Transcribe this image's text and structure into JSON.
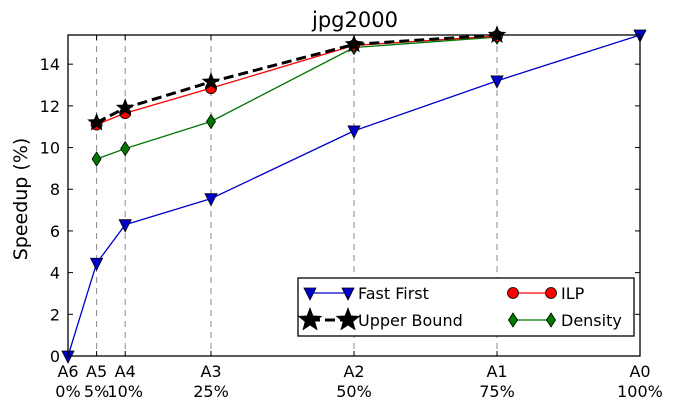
{
  "chart_data": {
    "type": "line",
    "title": "jpg2000",
    "xlabel": "",
    "ylabel": "Speedup (%)",
    "ylim": [
      0,
      15.4
    ],
    "yticks": [
      0,
      2,
      4,
      6,
      8,
      10,
      12,
      14
    ],
    "xlim": [
      0,
      100
    ],
    "x": [
      0,
      5,
      10,
      25,
      50,
      75,
      100
    ],
    "xtick_names": [
      "A6",
      "A5",
      "A4",
      "A3",
      "A2",
      "A1",
      "A0"
    ],
    "xtick_pcts": [
      "0%",
      "5%",
      "10%",
      "25%",
      "50%",
      "75%",
      "100%"
    ],
    "vertical_gridlines_at": [
      5,
      10,
      25,
      50,
      75
    ],
    "legend_position": "lower-right",
    "series": [
      {
        "name": "Fast First",
        "color": "#0000cc",
        "marker": "triangle-down",
        "dashed": false,
        "x": [
          0,
          5,
          10,
          25,
          50,
          75,
          100
        ],
        "values": [
          0,
          4.45,
          6.3,
          7.55,
          10.8,
          13.2,
          15.4
        ]
      },
      {
        "name": "Upper Bound",
        "color": "#000000",
        "marker": "star",
        "dashed": true,
        "x": [
          5,
          10,
          25,
          50,
          75
        ],
        "values": [
          11.2,
          11.9,
          13.15,
          14.95,
          15.4
        ]
      },
      {
        "name": "ILP",
        "color": "#ff0000",
        "marker": "circle",
        "dashed": false,
        "x": [
          5,
          10,
          25,
          50,
          75
        ],
        "values": [
          11.1,
          11.65,
          12.85,
          14.9,
          15.35
        ]
      },
      {
        "name": "Density",
        "color": "#007700",
        "marker": "diamond",
        "dashed": false,
        "x": [
          5,
          10,
          25,
          50,
          75
        ],
        "values": [
          9.45,
          9.95,
          11.25,
          14.8,
          15.3
        ]
      }
    ]
  }
}
